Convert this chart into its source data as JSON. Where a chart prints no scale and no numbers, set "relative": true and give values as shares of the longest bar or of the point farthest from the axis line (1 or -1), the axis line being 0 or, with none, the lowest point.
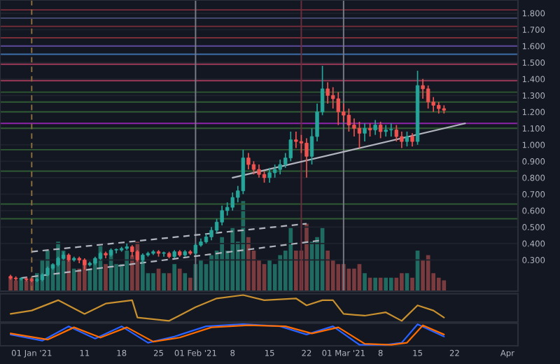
{
  "chart_data": [
    {
      "type": "candlestick",
      "x": [
        "2020-12-28",
        "2020-12-29",
        "2020-12-30",
        "2020-12-31",
        "2021-01-01",
        "2021-01-02",
        "2021-01-03",
        "2021-01-04",
        "2021-01-05",
        "2021-01-06",
        "2021-01-07",
        "2021-01-08",
        "2021-01-09",
        "2021-01-10",
        "2021-01-11",
        "2021-01-12",
        "2021-01-13",
        "2021-01-14",
        "2021-01-15",
        "2021-01-16",
        "2021-01-17",
        "2021-01-18",
        "2021-01-19",
        "2021-01-20",
        "2021-01-21",
        "2021-01-22",
        "2021-01-23",
        "2021-01-24",
        "2021-01-25",
        "2021-01-26",
        "2021-01-27",
        "2021-01-28",
        "2021-01-29",
        "2021-01-30",
        "2021-01-31",
        "2021-02-01",
        "2021-02-02",
        "2021-02-03",
        "2021-02-04",
        "2021-02-05",
        "2021-02-06",
        "2021-02-07",
        "2021-02-08",
        "2021-02-09",
        "2021-02-10",
        "2021-02-11",
        "2021-02-12",
        "2021-02-13",
        "2021-02-14",
        "2021-02-15",
        "2021-02-16",
        "2021-02-17",
        "2021-02-18",
        "2021-02-19",
        "2021-02-20",
        "2021-02-21",
        "2021-02-22",
        "2021-02-23",
        "2021-02-24",
        "2021-02-25",
        "2021-02-26",
        "2021-02-27",
        "2021-02-28",
        "2021-03-01",
        "2021-03-02",
        "2021-03-03",
        "2021-03-04",
        "2021-03-05",
        "2021-03-06",
        "2021-03-07",
        "2021-03-08",
        "2021-03-09",
        "2021-03-10",
        "2021-03-11",
        "2021-03-12",
        "2021-03-13",
        "2021-03-14",
        "2021-03-15",
        "2021-03-16",
        "2021-03-17",
        "2021-03-18",
        "2021-03-19",
        "2021-03-20"
      ],
      "ohlc": [
        [
          0.2,
          0.21,
          0.18,
          0.19
        ],
        [
          0.19,
          0.2,
          0.175,
          0.185
        ],
        [
          0.185,
          0.195,
          0.175,
          0.185
        ],
        [
          0.185,
          0.195,
          0.17,
          0.18
        ],
        [
          0.18,
          0.19,
          0.165,
          0.175
        ],
        [
          0.175,
          0.19,
          0.165,
          0.18
        ],
        [
          0.18,
          0.22,
          0.17,
          0.21
        ],
        [
          0.21,
          0.26,
          0.2,
          0.25
        ],
        [
          0.25,
          0.28,
          0.24,
          0.27
        ],
        [
          0.27,
          0.32,
          0.26,
          0.31
        ],
        [
          0.31,
          0.35,
          0.3,
          0.33
        ],
        [
          0.33,
          0.34,
          0.29,
          0.3
        ],
        [
          0.3,
          0.32,
          0.29,
          0.31
        ],
        [
          0.31,
          0.32,
          0.28,
          0.3
        ],
        [
          0.3,
          0.31,
          0.24,
          0.27
        ],
        [
          0.27,
          0.29,
          0.26,
          0.28
        ],
        [
          0.28,
          0.32,
          0.27,
          0.31
        ],
        [
          0.31,
          0.35,
          0.3,
          0.34
        ],
        [
          0.34,
          0.35,
          0.31,
          0.33
        ],
        [
          0.33,
          0.37,
          0.32,
          0.36
        ],
        [
          0.36,
          0.37,
          0.34,
          0.36
        ],
        [
          0.36,
          0.38,
          0.35,
          0.37
        ],
        [
          0.37,
          0.4,
          0.36,
          0.38
        ],
        [
          0.38,
          0.39,
          0.32,
          0.35
        ],
        [
          0.35,
          0.36,
          0.29,
          0.3
        ],
        [
          0.3,
          0.34,
          0.28,
          0.33
        ],
        [
          0.33,
          0.35,
          0.32,
          0.34
        ],
        [
          0.34,
          0.36,
          0.33,
          0.35
        ],
        [
          0.35,
          0.36,
          0.32,
          0.34
        ],
        [
          0.34,
          0.35,
          0.32,
          0.34
        ],
        [
          0.34,
          0.35,
          0.31,
          0.32
        ],
        [
          0.32,
          0.36,
          0.31,
          0.35
        ],
        [
          0.35,
          0.36,
          0.32,
          0.33
        ],
        [
          0.33,
          0.36,
          0.32,
          0.35
        ],
        [
          0.35,
          0.36,
          0.33,
          0.34
        ],
        [
          0.34,
          0.4,
          0.33,
          0.39
        ],
        [
          0.39,
          0.43,
          0.38,
          0.41
        ],
        [
          0.41,
          0.46,
          0.4,
          0.44
        ],
        [
          0.44,
          0.5,
          0.42,
          0.48
        ],
        [
          0.48,
          0.55,
          0.46,
          0.53
        ],
        [
          0.53,
          0.63,
          0.51,
          0.6
        ],
        [
          0.6,
          0.65,
          0.57,
          0.62
        ],
        [
          0.62,
          0.71,
          0.6,
          0.68
        ],
        [
          0.68,
          0.75,
          0.65,
          0.72
        ],
        [
          0.72,
          0.97,
          0.7,
          0.92
        ],
        [
          0.92,
          0.95,
          0.85,
          0.88
        ],
        [
          0.88,
          0.9,
          0.82,
          0.85
        ],
        [
          0.85,
          0.88,
          0.8,
          0.82
        ],
        [
          0.82,
          0.84,
          0.77,
          0.8
        ],
        [
          0.8,
          0.86,
          0.77,
          0.83
        ],
        [
          0.83,
          0.88,
          0.8,
          0.85
        ],
        [
          0.85,
          0.91,
          0.82,
          0.88
        ],
        [
          0.88,
          0.95,
          0.86,
          0.92
        ],
        [
          0.92,
          1.08,
          0.9,
          1.03
        ],
        [
          1.03,
          1.08,
          0.98,
          1.02
        ],
        [
          1.02,
          1.06,
          0.95,
          1.01
        ],
        [
          1.01,
          1.04,
          0.8,
          0.93
        ],
        [
          0.93,
          1.1,
          0.88,
          1.05
        ],
        [
          1.05,
          1.25,
          1.02,
          1.2
        ],
        [
          1.2,
          1.48,
          1.18,
          1.34
        ],
        [
          1.34,
          1.38,
          1.25,
          1.3
        ],
        [
          1.3,
          1.35,
          1.22,
          1.28
        ],
        [
          1.28,
          1.32,
          1.12,
          1.2
        ],
        [
          1.2,
          1.25,
          1.14,
          1.18
        ],
        [
          1.18,
          1.22,
          1.08,
          1.12
        ],
        [
          1.12,
          1.16,
          1.05,
          1.1
        ],
        [
          1.1,
          1.14,
          0.98,
          1.07
        ],
        [
          1.07,
          1.13,
          1.02,
          1.1
        ],
        [
          1.1,
          1.13,
          1.05,
          1.09
        ],
        [
          1.09,
          1.15,
          1.06,
          1.12
        ],
        [
          1.12,
          1.14,
          1.04,
          1.08
        ],
        [
          1.08,
          1.12,
          1.05,
          1.09
        ],
        [
          1.09,
          1.13,
          1.05,
          1.09
        ],
        [
          1.09,
          1.12,
          1.02,
          1.05
        ],
        [
          1.05,
          1.08,
          0.98,
          1.02
        ],
        [
          1.02,
          1.08,
          0.99,
          1.05
        ],
        [
          1.05,
          1.07,
          0.99,
          1.02
        ],
        [
          1.02,
          1.45,
          1.0,
          1.36
        ],
        [
          1.36,
          1.4,
          1.28,
          1.34
        ],
        [
          1.34,
          1.36,
          1.22,
          1.26
        ],
        [
          1.26,
          1.29,
          1.2,
          1.24
        ],
        [
          1.24,
          1.26,
          1.19,
          1.22
        ],
        [
          1.22,
          1.24,
          1.19,
          1.21
        ]
      ],
      "series": [
        {
          "type": "line",
          "x": [
            "2021-02-08",
            "2021-03-24"
          ],
          "values": [
            0.8,
            1.13
          ],
          "color": "#b2b5be",
          "line_style": "solid"
        },
        {
          "type": "line",
          "x": [
            "2021-01-01",
            "2021-02-22"
          ],
          "values": [
            0.35,
            0.52
          ],
          "color": "#b2b5be",
          "line_style": "dashed"
        },
        {
          "type": "line",
          "x": [
            "2020-12-30",
            "2021-02-25"
          ],
          "values": [
            0.19,
            0.42
          ],
          "color": "#b2b5be",
          "line_style": "dashed"
        }
      ],
      "ref_lines": [
        {
          "axis": "y",
          "value": 1.82,
          "color": "#7a2e3a"
        },
        {
          "axis": "y",
          "value": 1.77,
          "color": "#4a4f78"
        },
        {
          "axis": "y",
          "value": 1.72,
          "color": "#7a2e3a"
        },
        {
          "axis": "y",
          "value": 1.65,
          "color": "#7a2e3a"
        },
        {
          "axis": "y",
          "value": 1.6,
          "color": "#5b4a9a"
        },
        {
          "axis": "y",
          "value": 1.55,
          "color": "#3d6fa8"
        },
        {
          "axis": "y",
          "value": 1.49,
          "color": "#9c3a58"
        },
        {
          "axis": "y",
          "value": 1.39,
          "color": "#9c3a58"
        },
        {
          "axis": "y",
          "value": 1.32,
          "color": "#2f5a33"
        },
        {
          "axis": "y",
          "value": 1.26,
          "color": "#2f5a33"
        },
        {
          "axis": "y",
          "value": 1.2,
          "color": "#2f5a33"
        },
        {
          "axis": "y",
          "value": 1.13,
          "color": "#8e24aa"
        },
        {
          "axis": "y",
          "value": 1.1,
          "color": "#2f5a33"
        },
        {
          "axis": "y",
          "value": 0.97,
          "color": "#2f5a33"
        },
        {
          "axis": "y",
          "value": 0.84,
          "color": "#2f5a33"
        },
        {
          "axis": "y",
          "value": 0.64,
          "color": "#2f5a33"
        },
        {
          "axis": "y",
          "value": 0.55,
          "color": "#2f5a33"
        },
        {
          "axis": "x",
          "value": "2021-01-01",
          "color": "#8d6e3f",
          "line_style": "dashed"
        },
        {
          "axis": "x",
          "value": "2021-02-01",
          "color": "#787b86",
          "line_style": "solid"
        },
        {
          "axis": "x",
          "value": "2021-02-21",
          "color": "#6b2d3a",
          "line_style": "solid"
        },
        {
          "axis": "x",
          "value": "2021-03-01",
          "color": "#787b86",
          "line_style": "solid"
        }
      ],
      "xlim": [
        "2020-12-26",
        "2021-04-03"
      ],
      "ylim": [
        0.11,
        1.88
      ],
      "yticks": [
        {
          "value": 0.3,
          "label": "0.300"
        },
        {
          "value": 0.4,
          "label": "0.400"
        },
        {
          "value": 0.5,
          "label": "0.500"
        },
        {
          "value": 0.6,
          "label": "0.600"
        },
        {
          "value": 0.7,
          "label": "0.700"
        },
        {
          "value": 0.8,
          "label": "0.800"
        },
        {
          "value": 0.9,
          "label": "0.900"
        },
        {
          "value": 1.0,
          "label": "1.000"
        },
        {
          "value": 1.1,
          "label": "1.100"
        },
        {
          "value": 1.2,
          "label": "1.200"
        },
        {
          "value": 1.3,
          "label": "1.300"
        },
        {
          "value": 1.4,
          "label": "1.400"
        },
        {
          "value": 1.5,
          "label": "1.500"
        },
        {
          "value": 1.6,
          "label": "1.600"
        },
        {
          "value": 1.7,
          "label": "1.700"
        },
        {
          "value": 1.8,
          "label": "1.800"
        }
      ],
      "tick_labels": "y",
      "grid": "y"
    },
    {
      "type": "bar",
      "relative": true,
      "tick_labels": false,
      "x": [
        "2020-12-28",
        "2020-12-29",
        "2020-12-30",
        "2020-12-31",
        "2021-01-01",
        "2021-01-02",
        "2021-01-03",
        "2021-01-04",
        "2021-01-05",
        "2021-01-06",
        "2021-01-07",
        "2021-01-08",
        "2021-01-09",
        "2021-01-10",
        "2021-01-11",
        "2021-01-12",
        "2021-01-13",
        "2021-01-14",
        "2021-01-15",
        "2021-01-16",
        "2021-01-17",
        "2021-01-18",
        "2021-01-19",
        "2021-01-20",
        "2021-01-21",
        "2021-01-22",
        "2021-01-23",
        "2021-01-24",
        "2021-01-25",
        "2021-01-26",
        "2021-01-27",
        "2021-01-28",
        "2021-01-29",
        "2021-01-30",
        "2021-01-31",
        "2021-02-01",
        "2021-02-02",
        "2021-02-03",
        "2021-02-04",
        "2021-02-05",
        "2021-02-06",
        "2021-02-07",
        "2021-02-08",
        "2021-02-09",
        "2021-02-10",
        "2021-02-11",
        "2021-02-12",
        "2021-02-13",
        "2021-02-14",
        "2021-02-15",
        "2021-02-16",
        "2021-02-17",
        "2021-02-18",
        "2021-02-19",
        "2021-02-20",
        "2021-02-21",
        "2021-02-22",
        "2021-02-23",
        "2021-02-24",
        "2021-02-25",
        "2021-02-26",
        "2021-02-27",
        "2021-02-28",
        "2021-03-01",
        "2021-03-02",
        "2021-03-03",
        "2021-03-04",
        "2021-03-05",
        "2021-03-06",
        "2021-03-07",
        "2021-03-08",
        "2021-03-09",
        "2021-03-10",
        "2021-03-11",
        "2021-03-12",
        "2021-03-13",
        "2021-03-14",
        "2021-03-15",
        "2021-03-16",
        "2021-03-17",
        "2021-03-18",
        "2021-03-19",
        "2021-03-20"
      ],
      "values": [
        0.15,
        0.12,
        0.14,
        0.12,
        0.15,
        0.2,
        0.35,
        0.45,
        0.3,
        0.55,
        0.45,
        0.35,
        0.25,
        0.25,
        0.35,
        0.25,
        0.35,
        0.5,
        0.3,
        0.45,
        0.3,
        0.3,
        0.45,
        0.4,
        0.55,
        0.35,
        0.2,
        0.2,
        0.25,
        0.2,
        0.2,
        0.3,
        0.25,
        0.2,
        0.15,
        0.3,
        0.35,
        0.3,
        0.4,
        0.45,
        0.6,
        0.45,
        0.7,
        0.55,
        1.0,
        0.6,
        0.45,
        0.35,
        0.3,
        0.35,
        0.3,
        0.4,
        0.45,
        0.7,
        0.45,
        0.45,
        0.75,
        0.55,
        0.6,
        0.7,
        0.45,
        0.35,
        0.3,
        0.3,
        0.25,
        0.25,
        0.3,
        0.2,
        0.15,
        0.15,
        0.15,
        0.15,
        0.15,
        0.15,
        0.2,
        0.2,
        0.15,
        0.45,
        0.35,
        0.4,
        0.2,
        0.15,
        0.12
      ],
      "colors": [
        "#7a3b3e",
        "#7a3b3e",
        "#1f6b62",
        "#7a3b3e",
        "#7a3b3e",
        "#1f6b62",
        "#1f6b62",
        "#1f6b62",
        "#1f6b62",
        "#1f6b62",
        "#1f6b62",
        "#7a3b3e",
        "#1f6b62",
        "#7a3b3e",
        "#7a3b3e",
        "#1f6b62",
        "#1f6b62",
        "#1f6b62",
        "#7a3b3e",
        "#1f6b62",
        "#1f6b62",
        "#1f6b62",
        "#1f6b62",
        "#7a3b3e",
        "#7a3b3e",
        "#1f6b62",
        "#1f6b62",
        "#1f6b62",
        "#7a3b3e",
        "#1f6b62",
        "#7a3b3e",
        "#1f6b62",
        "#7a3b3e",
        "#1f6b62",
        "#7a3b3e",
        "#1f6b62",
        "#1f6b62",
        "#1f6b62",
        "#1f6b62",
        "#1f6b62",
        "#1f6b62",
        "#1f6b62",
        "#1f6b62",
        "#1f6b62",
        "#1f6b62",
        "#7a3b3e",
        "#7a3b3e",
        "#7a3b3e",
        "#7a3b3e",
        "#1f6b62",
        "#1f6b62",
        "#1f6b62",
        "#1f6b62",
        "#1f6b62",
        "#7a3b3e",
        "#7a3b3e",
        "#7a3b3e",
        "#1f6b62",
        "#1f6b62",
        "#1f6b62",
        "#7a3b3e",
        "#7a3b3e",
        "#7a3b3e",
        "#7a3b3e",
        "#7a3b3e",
        "#7a3b3e",
        "#7a3b3e",
        "#1f6b62",
        "#7a3b3e",
        "#1f6b62",
        "#7a3b3e",
        "#1f6b62",
        "#1f6b62",
        "#7a3b3e",
        "#7a3b3e",
        "#1f6b62",
        "#7a3b3e",
        "#1f6b62",
        "#7a3b3e",
        "#7a3b3e",
        "#7a3b3e",
        "#7a3b3e",
        "#7a3b3e"
      ],
      "xlim": [
        "2020-12-26",
        "2021-04-03"
      ]
    },
    {
      "type": "line",
      "relative": true,
      "tick_labels": false,
      "series": [
        {
          "color": "#c8902e",
          "x": [
            "2020-12-28",
            "2021-01-01",
            "2021-01-06",
            "2021-01-11",
            "2021-01-15",
            "2021-01-20",
            "2021-01-21",
            "2021-01-27",
            "2021-02-01",
            "2021-02-05",
            "2021-02-10",
            "2021-02-14",
            "2021-02-20",
            "2021-02-22",
            "2021-02-25",
            "2021-02-27",
            "2021-03-01",
            "2021-03-05",
            "2021-03-09",
            "2021-03-12",
            "2021-03-15",
            "2021-03-18",
            "2021-03-20"
          ],
          "values": [
            0.27,
            0.4,
            0.8,
            0.27,
            0.67,
            0.8,
            0.13,
            0.0,
            0.53,
            0.87,
            1.0,
            0.8,
            0.87,
            0.6,
            0.8,
            0.8,
            0.27,
            0.2,
            0.33,
            0.0,
            0.6,
            0.4,
            0.13
          ]
        }
      ],
      "xlim": [
        "2020-12-26",
        "2021-04-03"
      ]
    },
    {
      "type": "line",
      "relative": true,
      "tick_labels": "x",
      "series": [
        {
          "color": "#2962ff",
          "x": [
            "2020-12-28",
            "2021-01-03",
            "2021-01-08",
            "2021-01-13",
            "2021-01-18",
            "2021-01-23",
            "2021-01-28",
            "2021-02-03",
            "2021-02-10",
            "2021-02-17",
            "2021-02-22",
            "2021-02-27",
            "2021-03-04",
            "2021-03-09",
            "2021-03-12",
            "2021-03-15",
            "2021-03-20"
          ],
          "values": [
            0.5,
            0.2,
            0.9,
            0.3,
            0.9,
            0.1,
            0.4,
            0.9,
            1.0,
            0.9,
            0.5,
            0.9,
            0.0,
            0.0,
            0.1,
            1.0,
            0.4
          ]
        },
        {
          "color": "#ff6d00",
          "x": [
            "2020-12-28",
            "2021-01-04",
            "2021-01-09",
            "2021-01-14",
            "2021-01-19",
            "2021-01-24",
            "2021-01-29",
            "2021-02-04",
            "2021-02-11",
            "2021-02-18",
            "2021-02-23",
            "2021-02-28",
            "2021-03-05",
            "2021-03-10",
            "2021-03-13",
            "2021-03-16",
            "2021-03-20"
          ],
          "values": [
            0.55,
            0.25,
            0.85,
            0.35,
            0.85,
            0.15,
            0.35,
            0.85,
            0.95,
            0.9,
            0.55,
            0.85,
            0.05,
            0.0,
            0.1,
            0.95,
            0.5
          ]
        }
      ],
      "xlim": [
        "2020-12-26",
        "2021-04-03"
      ],
      "xticks": [
        {
          "value": "2021-01-01",
          "label": "01 Jan '21"
        },
        {
          "value": "2021-01-11",
          "label": "11"
        },
        {
          "value": "2021-01-18",
          "label": "18"
        },
        {
          "value": "2021-01-25",
          "label": "25"
        },
        {
          "value": "2021-02-01",
          "label": "01 Feb '21"
        },
        {
          "value": "2021-02-08",
          "label": "8"
        },
        {
          "value": "2021-02-15",
          "label": "15"
        },
        {
          "value": "2021-02-22",
          "label": "22"
        },
        {
          "value": "2021-03-01",
          "label": "01 Mar '21"
        },
        {
          "value": "2021-03-08",
          "label": "8"
        },
        {
          "value": "2021-03-15",
          "label": "15"
        },
        {
          "value": "2021-03-22",
          "label": "22"
        },
        {
          "value": "2021-04-01",
          "label": "Apr"
        }
      ]
    }
  ]
}
